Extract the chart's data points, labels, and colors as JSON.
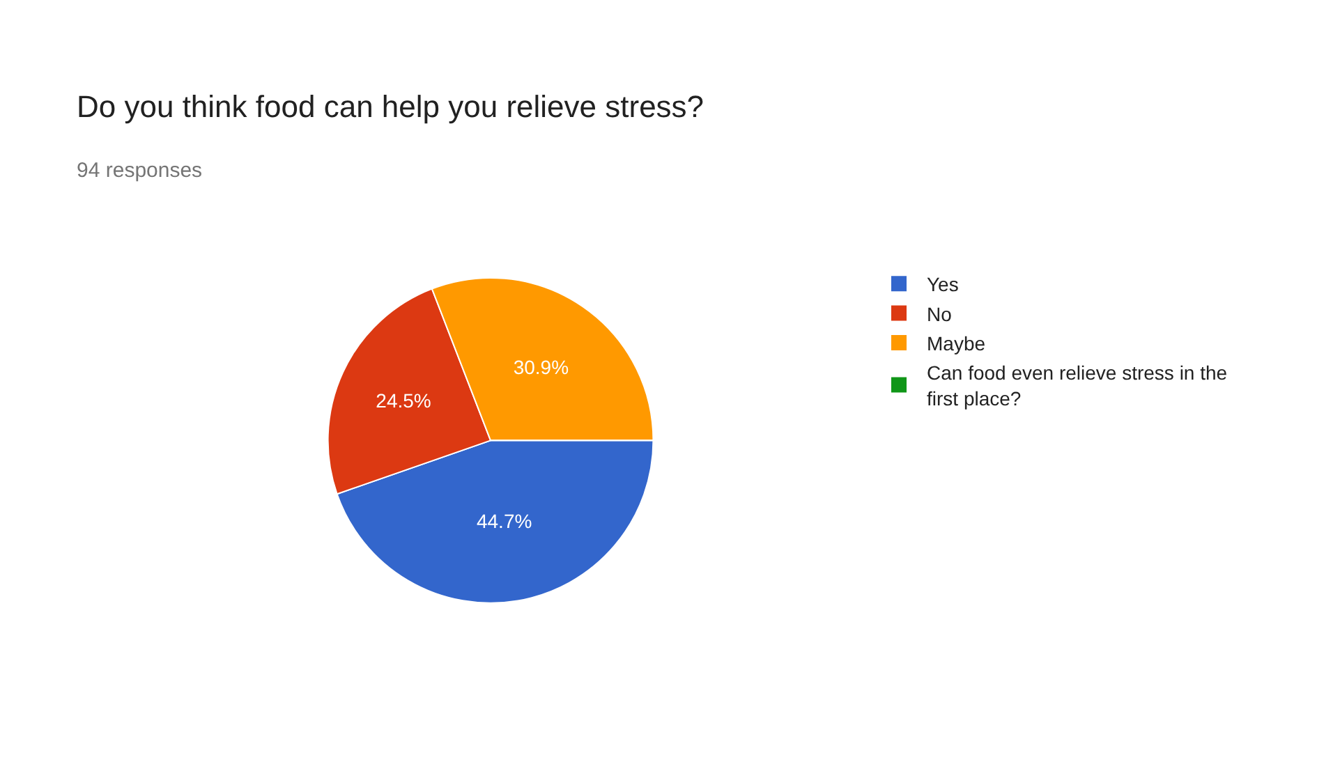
{
  "chart_data": {
    "type": "pie",
    "title": "Do you think food can help you relieve stress?",
    "subtitle": "94 responses",
    "categories": [
      "Yes",
      "No",
      "Maybe",
      "Can food even relieve stress in the first place?"
    ],
    "values": [
      44.7,
      24.5,
      30.9,
      0
    ],
    "colors": [
      "#3366cc",
      "#dc3912",
      "#ff9900",
      "#109618"
    ],
    "value_labels": [
      "44.7%",
      "24.5%",
      "30.9%",
      null
    ],
    "legend": "right"
  }
}
